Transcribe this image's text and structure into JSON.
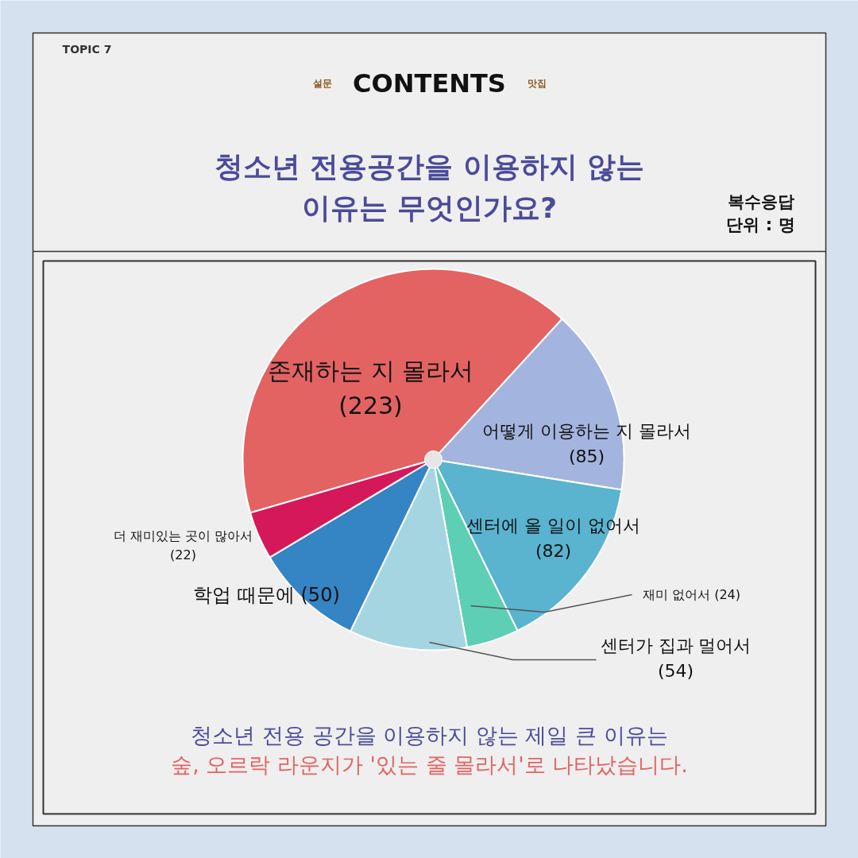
{
  "chart_data": {
    "type": "pie",
    "title": "청소년 전용공간을 이용하지 않는\n이유는 무엇인가요?",
    "categories": [
      "존재하는 지 몰라서",
      "어떻게 이용하는 지 몰라서",
      "센터에 올 일이 없어서",
      "재미 없어서",
      "센터가 집과 멀어서",
      "학업 때문에",
      "더 재미있는 곳이 많아서"
    ],
    "values": [
      223,
      85,
      82,
      24,
      54,
      50,
      22
    ],
    "value_labels": [
      "(223)",
      "(85)",
      "(82)",
      "(24)",
      "(54)",
      "(50)",
      "(22)"
    ],
    "colors": [
      "#e36363",
      "#a3b4de",
      "#5ab3cf",
      "#5dcfb4",
      "#a6d5e2",
      "#3584c4",
      "#d4185a"
    ],
    "annotations": [
      "TOPIC 7",
      "설문",
      "CONTENTS",
      "맛집",
      "복수응답",
      "단위 : 명",
      "청소년 전용 공간을 이용하지 않는 제일 큰 이유는",
      "숲, 오르락 라운지가 '있는 줄 몰라서'로 나타났습니다."
    ]
  }
}
